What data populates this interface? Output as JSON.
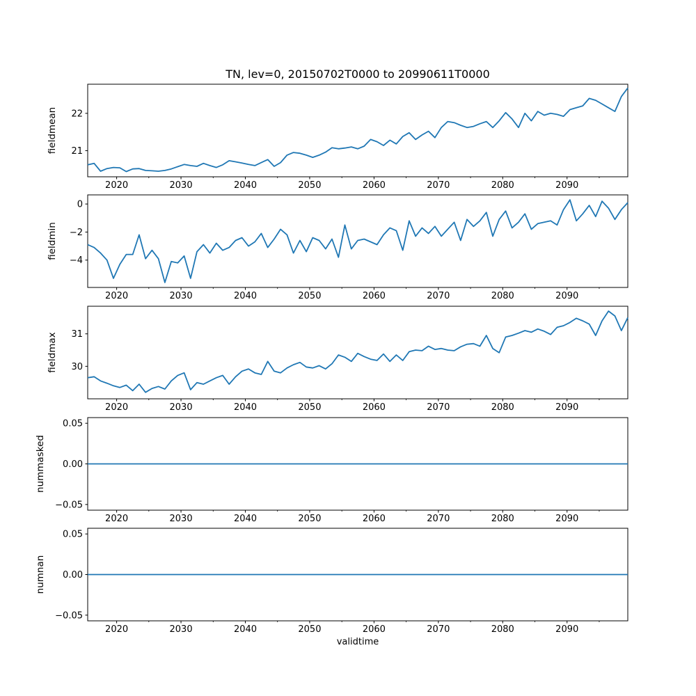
{
  "title": "TN, lev=0, 20150702T0000 to 20990611T0000",
  "x_axis": {
    "label": "validtime",
    "range_start": "20150702T0000",
    "range_end": "20990611T0000",
    "xlim": [
      2015.5,
      2099.44
    ],
    "major_ticks": [
      2020,
      2030,
      2040,
      2050,
      2060,
      2070,
      2080,
      2090
    ],
    "major_tick_labels": [
      "2020",
      "2030",
      "2040",
      "2050",
      "2060",
      "2070",
      "2080",
      "2090"
    ],
    "minor_tick_step": 5
  },
  "style": {
    "line_color": "#1f77b4",
    "axis_color": "#000000",
    "text_color": "#000000",
    "background": "#ffffff"
  },
  "chart_data": [
    {
      "type": "line",
      "name": "fieldmean",
      "ylabel": "fieldmean",
      "ylim": [
        20.3,
        22.78
      ],
      "yticks": [
        21,
        22
      ],
      "ytick_labels": [
        "21",
        "22"
      ],
      "n_points": 85,
      "x_start_year": 2015,
      "values": [
        20.62,
        20.66,
        20.45,
        20.52,
        20.55,
        20.54,
        20.44,
        20.51,
        20.52,
        20.47,
        20.46,
        20.45,
        20.47,
        20.51,
        20.57,
        20.63,
        20.6,
        20.58,
        20.66,
        20.6,
        20.55,
        20.62,
        20.73,
        20.7,
        20.67,
        20.63,
        20.6,
        20.68,
        20.76,
        20.58,
        20.68,
        20.88,
        20.95,
        20.93,
        20.88,
        20.82,
        20.88,
        20.96,
        21.08,
        21.05,
        21.07,
        21.1,
        21.05,
        21.12,
        21.3,
        21.24,
        21.14,
        21.28,
        21.18,
        21.38,
        21.48,
        21.3,
        21.42,
        21.52,
        21.35,
        21.62,
        21.78,
        21.75,
        21.68,
        21.62,
        21.65,
        21.72,
        21.78,
        21.62,
        21.8,
        22.02,
        21.85,
        21.62,
        22.0,
        21.8,
        22.05,
        21.95,
        22.0,
        21.97,
        21.92,
        22.1,
        22.15,
        22.2,
        22.4,
        22.35,
        22.25,
        22.15,
        22.05,
        22.45,
        22.68
      ]
    },
    {
      "type": "line",
      "name": "fieldmin",
      "ylabel": "fieldmin",
      "ylim": [
        -5.95,
        0.65
      ],
      "yticks": [
        -4,
        -2,
        0
      ],
      "ytick_labels": [
        "−4",
        "−2",
        "0"
      ],
      "n_points": 85,
      "x_start_year": 2015,
      "values": [
        -2.9,
        -3.1,
        -3.5,
        -4.0,
        -5.3,
        -4.3,
        -3.6,
        -3.6,
        -2.2,
        -3.9,
        -3.3,
        -3.9,
        -5.6,
        -4.1,
        -4.2,
        -3.7,
        -5.3,
        -3.4,
        -2.9,
        -3.5,
        -2.8,
        -3.3,
        -3.1,
        -2.6,
        -2.4,
        -3.0,
        -2.7,
        -2.1,
        -3.1,
        -2.5,
        -1.8,
        -2.2,
        -3.5,
        -2.6,
        -3.4,
        -2.4,
        -2.6,
        -3.2,
        -2.5,
        -3.8,
        -1.5,
        -3.2,
        -2.6,
        -2.5,
        -2.7,
        -2.9,
        -2.2,
        -1.7,
        -1.9,
        -3.3,
        -1.2,
        -2.3,
        -1.7,
        -2.1,
        -1.6,
        -2.3,
        -1.8,
        -1.3,
        -2.6,
        -1.1,
        -1.6,
        -1.2,
        -0.6,
        -2.3,
        -1.1,
        -0.5,
        -1.7,
        -1.3,
        -0.7,
        -1.8,
        -1.4,
        -1.3,
        -1.2,
        -1.5,
        -0.4,
        0.3,
        -1.2,
        -0.7,
        -0.1,
        -0.9,
        0.2,
        -0.3,
        -1.1,
        -0.4,
        0.1
      ]
    },
    {
      "type": "line",
      "name": "fieldmax",
      "ylabel": "fieldmax",
      "ylim": [
        29.0,
        31.85
      ],
      "yticks": [
        30,
        31
      ],
      "ytick_labels": [
        "30",
        "31"
      ],
      "n_points": 85,
      "x_start_year": 2015,
      "values": [
        29.65,
        29.68,
        29.55,
        29.48,
        29.4,
        29.35,
        29.42,
        29.25,
        29.45,
        29.2,
        29.32,
        29.38,
        29.3,
        29.55,
        29.72,
        29.8,
        29.28,
        29.5,
        29.45,
        29.55,
        29.65,
        29.72,
        29.45,
        29.68,
        29.85,
        29.92,
        29.8,
        29.75,
        30.15,
        29.85,
        29.8,
        29.95,
        30.05,
        30.12,
        29.98,
        29.95,
        30.02,
        29.92,
        30.08,
        30.35,
        30.28,
        30.15,
        30.4,
        30.3,
        30.22,
        30.18,
        30.38,
        30.15,
        30.35,
        30.18,
        30.45,
        30.5,
        30.48,
        30.62,
        30.52,
        30.55,
        30.5,
        30.48,
        30.6,
        30.68,
        30.7,
        30.62,
        30.95,
        30.55,
        30.42,
        30.9,
        30.95,
        31.02,
        31.1,
        31.05,
        31.15,
        31.08,
        30.98,
        31.2,
        31.25,
        31.35,
        31.48,
        31.4,
        31.3,
        30.95,
        31.4,
        31.7,
        31.55,
        31.1,
        31.5
      ]
    },
    {
      "type": "line",
      "name": "nummasked",
      "ylabel": "nummasked",
      "ylim": [
        -0.057,
        0.057
      ],
      "yticks": [
        -0.05,
        0.0,
        0.05
      ],
      "ytick_labels": [
        "−0.05",
        "0.00",
        "0.05"
      ],
      "n_points": 85,
      "x_start_year": 2015,
      "constant_value": 0.0
    },
    {
      "type": "line",
      "name": "numnan",
      "ylabel": "numnan",
      "ylim": [
        -0.057,
        0.057
      ],
      "yticks": [
        -0.05,
        0.0,
        0.05
      ],
      "ytick_labels": [
        "−0.05",
        "0.00",
        "0.05"
      ],
      "n_points": 85,
      "x_start_year": 2015,
      "constant_value": 0.0
    }
  ]
}
